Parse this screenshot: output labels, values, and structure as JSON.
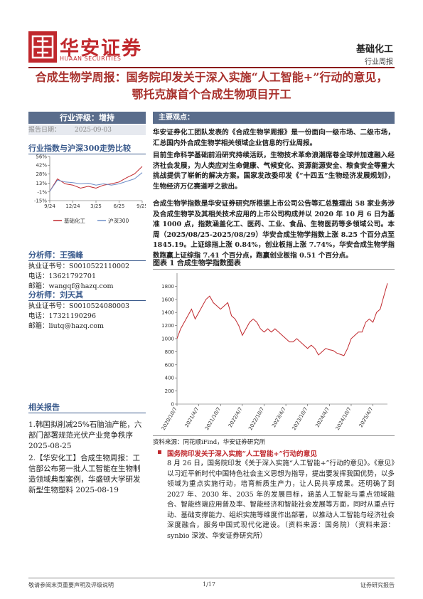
{
  "header": {
    "logo_name": "华安证券",
    "logo_en": "HUAAN SECURITIES",
    "industry": "基础化工",
    "report_type": "行业周报"
  },
  "title": "合成生物学周报：国务院印发关于深入实施“人工智能+”行动的意见，鄂托克旗首个合成生物项目开工",
  "rating": "行业评级：增持",
  "report_date": {
    "label": "报告日期：",
    "value": "2025-09-03"
  },
  "chart_data": [
    {
      "type": "line",
      "title": "行业指数与沪深300走势比较",
      "categories": [
        "9/24",
        null,
        null,
        "12/24",
        null,
        null,
        "3/25",
        null,
        null,
        "6/25",
        null,
        null,
        "9/25"
      ],
      "series": [
        {
          "name": "基础化工",
          "color": "#c0282d",
          "values": [
            0,
            20,
            12,
            10,
            5,
            8,
            5,
            10,
            12,
            15,
            22,
            28,
            40
          ]
        },
        {
          "name": "沪深300",
          "color": "#6f8fc8",
          "values": [
            0,
            18,
            15,
            14,
            12,
            13,
            10,
            12,
            10,
            12,
            16,
            20,
            30
          ]
        }
      ],
      "ylim": [
        -15,
        56
      ],
      "yticks": [
        {
          "value": 56,
          "label": "56%"
        },
        {
          "value": 42,
          "label": "42%"
        },
        {
          "value": 28,
          "label": "28%"
        },
        {
          "value": 13,
          "label": "13%"
        },
        {
          "value": -1,
          "label": "-1%"
        },
        {
          "value": -15,
          "label": "-15%"
        }
      ],
      "legend": "bottom"
    },
    {
      "type": "line",
      "title": "图表 1 合成生物学指数图表",
      "categories": [
        "2020/10/7",
        null,
        null,
        null,
        null,
        null,
        "2021/4/7",
        null,
        null,
        null,
        null,
        null,
        "2021/10/7",
        null,
        null,
        null,
        null,
        null,
        "2022/4/7",
        null,
        null,
        null,
        null,
        null,
        "2022/10/7",
        null,
        null,
        null,
        null,
        null,
        "2023/4/7",
        null,
        null,
        null,
        null,
        null,
        "2023/10/7",
        null,
        null,
        null,
        null,
        null,
        "2024/4/7",
        null,
        null,
        null,
        null,
        null,
        "2024/10/7",
        null,
        null,
        null,
        null,
        null,
        "2025/4/7",
        null,
        null,
        null,
        null
      ],
      "series": [
        {
          "name": "合成生物学指数",
          "color": "#c0282d",
          "values": [
            1000,
            1150,
            1250,
            1350,
            1450,
            1300,
            1400,
            1500,
            1600,
            1650,
            1550,
            1500,
            1450,
            1500,
            1550,
            1350,
            1300,
            1200,
            1050,
            1150,
            1250,
            1300,
            1250,
            1150,
            1100,
            1150,
            1100,
            1150,
            1100,
            1050,
            1000,
            950,
            950,
            1000,
            950,
            900,
            850,
            900,
            850,
            750,
            800,
            850,
            830,
            820,
            780,
            760,
            740,
            850,
            1000,
            1050,
            1100,
            1100,
            1250,
            1300,
            1250,
            1400,
            1450,
            1650,
            1845
          ]
        }
      ],
      "ylim": [
        0,
        2000
      ],
      "yticks": [
        0,
        200,
        400,
        600,
        800,
        1000,
        1200,
        1400,
        1600,
        1800
      ],
      "source": "资料来源：同花顺iFind，华安证券研究所"
    }
  ],
  "analysts": [
    {
      "name": "分析师：王强峰",
      "cert": "执业证书号：S0010522110002",
      "phone": "电话：13621792701",
      "email": "邮箱：wangqf@hazq.com"
    },
    {
      "name": "分析师：刘天其",
      "cert": "执业证书号：S0010524080003",
      "phone": "电话：17321190296",
      "email": "邮箱：liutq@hazq.com"
    }
  ],
  "related": {
    "title": "相关报告",
    "items": [
      {
        "text": "1.韩国拟削减25%石脑油产能，六部门部署规范光伏产业竞争秩序",
        "date": "2025-08-25"
      },
      {
        "text": "2.【华安化工】合成生物周报：工信部公布第一批人工智能在生物制造领域典型案例，华盛顿大学研发新型生物塑料",
        "date": "2025-08-19"
      }
    ]
  },
  "main": {
    "heading": "主要观点：",
    "paragraphs": [
      "华安证券化工团队发表的《合成生物学周报》是一份面向一级市场、二级市场，汇总国内外合成生物学相关领域企业信息的行业周报。",
      "目前生命科学基础前沿研究持续活跃，生物技术革命浪潮席卷全球并加速融入经济社会发展，为人类应对生命健康、气候变化、资源能源安全、粮食安全等重大挑战提供了崭新的解决方案。国家发改委印发《“十四五”生物经济发展规划》，生物经济万亿赛道呼之欲出。",
      "合成生物学指数是华安证券研究所根据上市公司公告等汇总整理出 58 家业务涉及合成生物学及其相关技术应用的上市公司构成并以 2020 年 10 月 6 日为基准 1000 点，指数涵盖化工、医药、工业、食品、生物医药等多领域公司。本周（2025/08/25-2025/08/29）华安合成生物学指数上涨 8.25 个百分点至 1845.19。上证综指上涨 0.84%，创业板指上涨 7.74%，华安合成生物学指数跑赢上证综指 7.41 个百分点，跑赢创业板指 0.51 个百分点。"
    ]
  },
  "news": {
    "heading": "国务院印发关于深入实施“人工智能+”行动的意见",
    "body": "8 月 26 日，国务院印发《关于深入实施“人工智能+”行动的意见》。《意见》以习近平新时代中国特色社会主义思想为指导，提出要发挥我国优势，以多领域为重点实施行动，培育新质生产力，让人民共享成果。还明确了到 2027 年、2030 年、2035 年的发展目标，涵盖人工智能与重点领域融合、智能终端应用普及率、智能经济和智能社会发展等方面，同时从重点行动、基础支撑能力、组织实施等维度作出部署，以推动人工智能与经济社会深度融合，服务中国式现代化建设。（资料来源：国务院）（资料来源：synbio 深波、华安证券研究所）"
  },
  "footer": {
    "left": "敬请参阅末页重要声明及评级说明",
    "page": "1/17",
    "right": "证券研究报告"
  }
}
